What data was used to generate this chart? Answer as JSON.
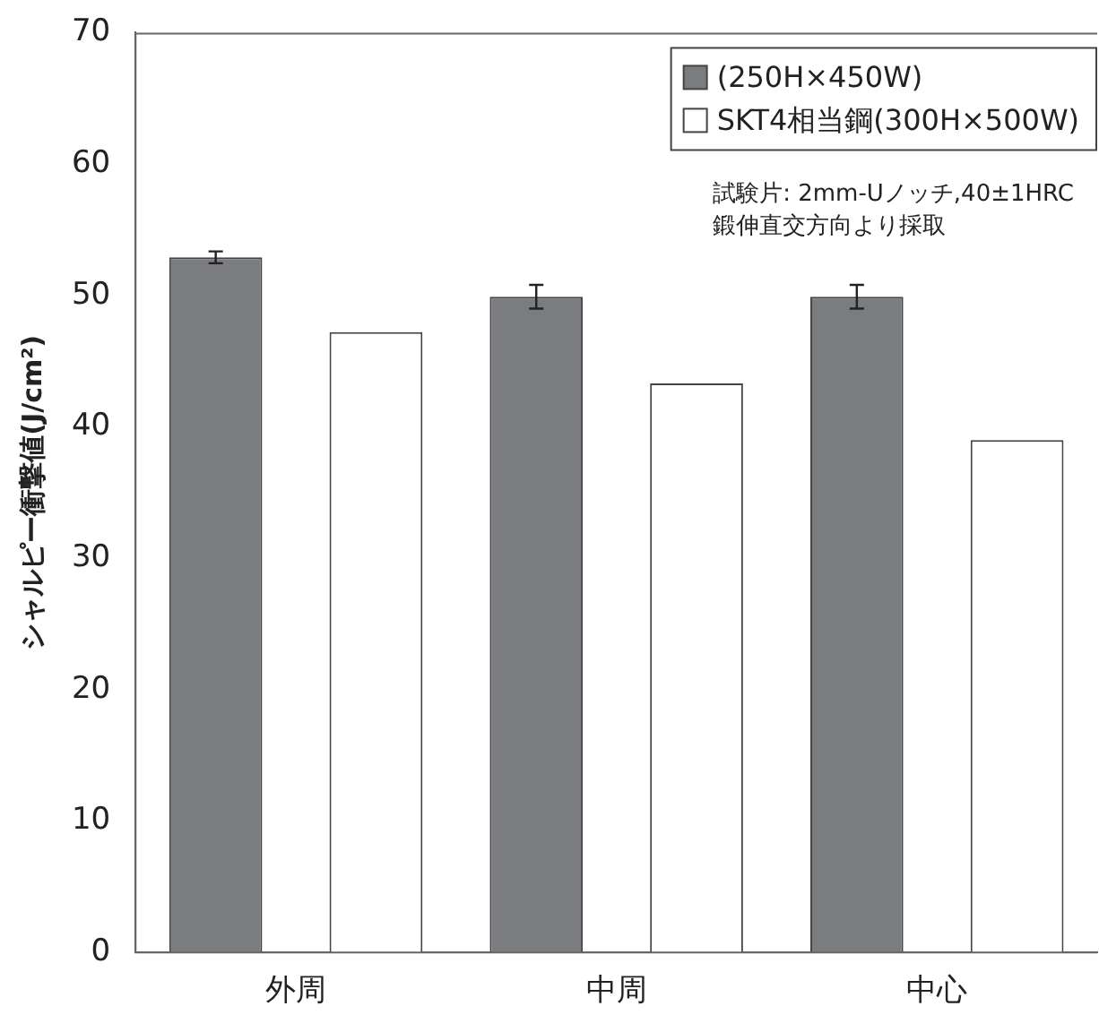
{
  "chart_data": {
    "type": "bar",
    "ylabel": "シャルピー衝撃値(J/cm²)",
    "categories": [
      "外周",
      "中周",
      "中心"
    ],
    "series": [
      {
        "name": "(250H×450W)",
        "color": "#7b7c80",
        "values": [
          52.9,
          49.9,
          49.9
        ],
        "errors": [
          0.45,
          0.9,
          0.9
        ]
      },
      {
        "name": "SKT4相当鋼(300H×500W)",
        "color": "#ffffff",
        "values": [
          47.2,
          43.3,
          39.0
        ]
      }
    ],
    "ylim": [
      0,
      70
    ],
    "yticks": [
      0,
      10,
      20,
      30,
      40,
      50,
      60,
      70
    ],
    "grid": false,
    "legend": "top right",
    "annotations": [
      "試験片: 2mm-Uノッチ,40±1HRC",
      "鍛伸直交方向より採取"
    ]
  }
}
